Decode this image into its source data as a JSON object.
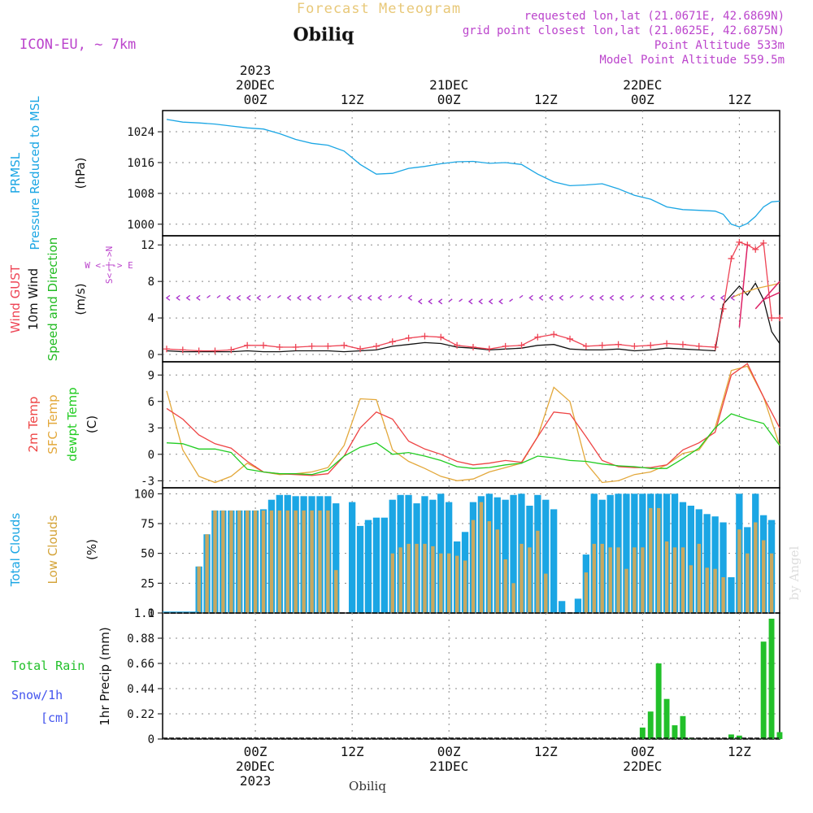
{
  "header": {
    "title": "Forecast Meteogram",
    "station": "Obiliq",
    "model": "ICON-EU, ~ 7km",
    "requested": "requested lon,lat (21.0671E, 42.6869N)",
    "gridpoint": "grid point closest lon,lat (21.0625E, 42.6875N)",
    "altitude": "Point Altitude 533m",
    "model_altitude": "Model Point Altitude 559.5m",
    "footer_station": "Obiliq",
    "watermark": "by Angel"
  },
  "colors": {
    "pressure": "#1ba6e4",
    "gust": "#ee4455",
    "wind": "#111111",
    "dir_green": "#22bb22",
    "compass": "#bb44cc",
    "t2m": "#ee4444",
    "sfc": "#e3a83b",
    "dewpt": "#22cc22",
    "total_clouds": "#1ba6e4",
    "low_clouds": "#c8a860",
    "rain": "#22c02a",
    "snow": "#4455ee"
  },
  "time_axis": {
    "top_ticks": [
      "00Z",
      "12Z",
      "00Z",
      "12Z",
      "00Z",
      "12Z"
    ],
    "top_dates": [
      "20DEC",
      "21DEC",
      "22DEC"
    ],
    "year": "2023",
    "bottom_ticks": [
      "00Z",
      "12Z",
      "00Z",
      "12Z",
      "00Z",
      "12Z"
    ],
    "bottom_dates": [
      "20DEC",
      "21DEC",
      "22DEC"
    ],
    "tick_hours": [
      0,
      12,
      24,
      36,
      48,
      60
    ],
    "date_hours": [
      0,
      24,
      48
    ],
    "range_hours": [
      -11.5,
      65
    ]
  },
  "labels": {
    "pressure_abbr": "PRMSL",
    "pressure_name": "Pressure Reduced to MSL",
    "pressure_unit": "(hPa)",
    "gust": "Wind GUST",
    "wind": "10m Wind",
    "wind_dir": "Speed and Direction",
    "wind_unit": "(m/s)",
    "compass_w": "W <-|-> E",
    "compass_n": "S<-|->N",
    "t2m": "2m Temp",
    "sfc": "SFC Temp",
    "dewpt": "dewpt Temp",
    "temp_unit": "(C)",
    "total_clouds": "Total Clouds",
    "low_clouds": "Low Clouds",
    "cloud_unit": "(%)",
    "total_rain": "Total  Rain",
    "snow": "Snow/1h",
    "snow_unit": "[cm]",
    "precip": "1hr Precip (mm)"
  },
  "chart_data": [
    {
      "type": "line",
      "title": "PRMSL Pressure Reduced to MSL",
      "ylabel": "hPa",
      "ylim": [
        997,
        1029.5
      ],
      "yticks": [
        1000,
        1008,
        1016,
        1024
      ],
      "series": [
        {
          "name": "PRMSL",
          "x": [
            -11,
            -9,
            -7,
            -5,
            -3,
            -1,
            1,
            3,
            5,
            7,
            9,
            11,
            13,
            15,
            17,
            19,
            21,
            23,
            25,
            27,
            29,
            31,
            33,
            35,
            37,
            39,
            41,
            43,
            45,
            47,
            49,
            51,
            53,
            55,
            57,
            58,
            59,
            60,
            61,
            62,
            63,
            64,
            65
          ],
          "values": [
            1027.2,
            1026.5,
            1026.3,
            1026.0,
            1025.5,
            1025.0,
            1024.7,
            1023.5,
            1022.0,
            1021.0,
            1020.5,
            1019.0,
            1015.5,
            1013.0,
            1013.2,
            1014.5,
            1015.0,
            1015.7,
            1016.2,
            1016.3,
            1015.8,
            1016.0,
            1015.5,
            1013.0,
            1011.0,
            1010.0,
            1010.2,
            1010.5,
            1009.2,
            1007.5,
            1006.5,
            1004.5,
            1003.8,
            1003.6,
            1003.4,
            1002.6,
            1000.0,
            999.3,
            1000.2,
            1002.0,
            1004.5,
            1005.8,
            1006.0
          ]
        }
      ]
    },
    {
      "type": "line",
      "title": "Wind GUST / 10m Wind Speed and Direction",
      "ylabel": "m/s",
      "ylim": [
        -0.8,
        13
      ],
      "yticks": [
        0,
        4,
        8,
        12
      ],
      "series": [
        {
          "name": "Wind GUST",
          "x": [
            -11,
            -9,
            -7,
            -5,
            -3,
            -1,
            1,
            3,
            5,
            7,
            9,
            11,
            13,
            15,
            17,
            19,
            21,
            23,
            25,
            27,
            29,
            31,
            33,
            35,
            37,
            39,
            41,
            43,
            45,
            47,
            49,
            51,
            53,
            55,
            57,
            58,
            59,
            60,
            61,
            62,
            63,
            64,
            65
          ],
          "values": [
            0.6,
            0.5,
            0.4,
            0.4,
            0.5,
            1.0,
            1.0,
            0.8,
            0.8,
            0.9,
            0.9,
            1.0,
            0.6,
            0.9,
            1.4,
            1.8,
            2.0,
            1.9,
            1.0,
            0.8,
            0.6,
            0.9,
            1.0,
            1.9,
            2.2,
            1.7,
            0.9,
            1.0,
            1.1,
            0.9,
            1.0,
            1.2,
            1.1,
            0.9,
            0.8,
            5.0,
            10.5,
            12.3,
            12.0,
            11.5,
            12.2,
            4.0,
            4.0
          ]
        },
        {
          "name": "10m Wind",
          "x": [
            -11,
            -9,
            -7,
            -5,
            -3,
            -1,
            1,
            3,
            5,
            7,
            9,
            11,
            13,
            15,
            17,
            19,
            21,
            23,
            25,
            27,
            29,
            31,
            33,
            35,
            37,
            39,
            41,
            43,
            45,
            47,
            49,
            51,
            53,
            55,
            57,
            58,
            59,
            60,
            61,
            62,
            63,
            64,
            65
          ],
          "values": [
            0.4,
            0.3,
            0.3,
            0.3,
            0.3,
            0.4,
            0.3,
            0.3,
            0.4,
            0.4,
            0.4,
            0.3,
            0.4,
            0.5,
            0.9,
            1.1,
            1.3,
            1.2,
            0.8,
            0.7,
            0.5,
            0.6,
            0.7,
            1.0,
            1.1,
            0.6,
            0.5,
            0.5,
            0.6,
            0.4,
            0.5,
            0.7,
            0.6,
            0.5,
            0.4,
            5.5,
            6.5,
            7.5,
            6.5,
            7.8,
            6.0,
            2.5,
            1.2
          ]
        },
        {
          "name": "Speed and Direction",
          "x": [
            59,
            60,
            61,
            62,
            63,
            64,
            65
          ],
          "values": [
            6.2,
            6.6,
            6.9,
            7.2,
            7.4,
            7.6,
            7.8
          ]
        }
      ],
      "direction_arrows": "sampled every hour, purple barbs along ~6 m/s"
    },
    {
      "type": "line",
      "title": "2m Temp / SFC Temp / dewpt Temp",
      "ylabel": "C",
      "ylim": [
        -3.8,
        10.5
      ],
      "yticks": [
        -3,
        0,
        3,
        6,
        9
      ],
      "series": [
        {
          "name": "2m Temp",
          "x": [
            -11,
            -9,
            -7,
            -5,
            -3,
            -1,
            1,
            3,
            5,
            7,
            9,
            11,
            13,
            15,
            17,
            19,
            21,
            23,
            25,
            27,
            29,
            31,
            33,
            35,
            37,
            39,
            41,
            43,
            45,
            47,
            49,
            51,
            53,
            55,
            57,
            59,
            61,
            63,
            65
          ],
          "values": [
            5.2,
            4.0,
            2.2,
            1.2,
            0.7,
            -0.8,
            -2.0,
            -2.2,
            -2.3,
            -2.4,
            -2.2,
            -0.2,
            3.0,
            4.8,
            4.0,
            1.5,
            0.6,
            0.0,
            -0.8,
            -1.2,
            -1.0,
            -0.7,
            -0.9,
            2.0,
            4.8,
            4.6,
            2.0,
            -0.7,
            -1.4,
            -1.5,
            -1.5,
            -1.2,
            0.5,
            1.3,
            2.5,
            9.0,
            10.3,
            6.5,
            3.0
          ]
        },
        {
          "name": "SFC Temp",
          "x": [
            -11,
            -9,
            -7,
            -5,
            -3,
            -1,
            1,
            3,
            5,
            7,
            9,
            11,
            13,
            15,
            17,
            19,
            21,
            23,
            25,
            27,
            29,
            31,
            33,
            35,
            37,
            39,
            41,
            43,
            45,
            47,
            49,
            51,
            53,
            55,
            57,
            59,
            61,
            63,
            65
          ],
          "values": [
            7.2,
            0.5,
            -2.5,
            -3.2,
            -2.5,
            -1.0,
            -2.0,
            -2.3,
            -2.2,
            -2.0,
            -1.5,
            1.0,
            6.3,
            6.2,
            0.5,
            -0.8,
            -1.6,
            -2.5,
            -3.0,
            -2.8,
            -2.0,
            -1.5,
            -1.0,
            2.0,
            7.6,
            6.0,
            -1.0,
            -3.2,
            -3.0,
            -2.3,
            -2.0,
            -1.2,
            0.1,
            0.5,
            3.0,
            9.5,
            10.0,
            6.5,
            1.0
          ]
        },
        {
          "name": "dewpt Temp",
          "x": [
            -11,
            -9,
            -7,
            -5,
            -3,
            -1,
            1,
            3,
            5,
            7,
            9,
            11,
            13,
            15,
            17,
            19,
            21,
            23,
            25,
            27,
            29,
            31,
            33,
            35,
            37,
            39,
            41,
            43,
            45,
            47,
            49,
            51,
            53,
            55,
            57,
            59,
            61,
            63,
            65
          ],
          "values": [
            1.3,
            1.2,
            0.6,
            0.6,
            0.2,
            -1.7,
            -2.0,
            -2.2,
            -2.2,
            -2.3,
            -1.8,
            -0.2,
            0.8,
            1.3,
            0.0,
            0.2,
            -0.2,
            -0.7,
            -1.4,
            -1.6,
            -1.5,
            -1.2,
            -1.0,
            -0.2,
            -0.4,
            -0.7,
            -0.8,
            -1.1,
            -1.3,
            -1.4,
            -1.6,
            -1.6,
            -0.5,
            0.7,
            3.0,
            4.6,
            4.0,
            3.5,
            1.0
          ]
        }
      ]
    },
    {
      "type": "bar",
      "title": "Total Clouds / Low Clouds",
      "ylabel": "%",
      "ylim": [
        0,
        105
      ],
      "yticks": [
        0,
        25,
        50,
        75,
        100
      ],
      "x_start": -7,
      "x_step": 1,
      "series": [
        {
          "name": "Total Clouds",
          "values": [
            39,
            66,
            86,
            86,
            86,
            86,
            86,
            86,
            87,
            95,
            99,
            99,
            98,
            98,
            98,
            98,
            98,
            92,
            0,
            93,
            73,
            78,
            80,
            80,
            95,
            99,
            99,
            92,
            98,
            95,
            100,
            93,
            60,
            68,
            93,
            98,
            100,
            97,
            95,
            99,
            100,
            90,
            99,
            95,
            87,
            10,
            0,
            12,
            49,
            100,
            95,
            99,
            100,
            100,
            100,
            100,
            100,
            100,
            100,
            100,
            93,
            90,
            87,
            83,
            81,
            76,
            30,
            100,
            72,
            100,
            82,
            78
          ]
        },
        {
          "name": "Low Clouds",
          "values": [
            39,
            66,
            86,
            86,
            86,
            86,
            86,
            86,
            86,
            86,
            86,
            86,
            86,
            86,
            86,
            86,
            86,
            36,
            0,
            0,
            0,
            0,
            0,
            0,
            50,
            55,
            58,
            58,
            58,
            56,
            50,
            50,
            48,
            44,
            78,
            93,
            77,
            70,
            45,
            25,
            58,
            55,
            69,
            33,
            0,
            0,
            0,
            0,
            34,
            58,
            58,
            55,
            55,
            37,
            55,
            55,
            88,
            88,
            60,
            55,
            55,
            40,
            58,
            38,
            37,
            30,
            0,
            70,
            50,
            76,
            61,
            50
          ]
        }
      ]
    },
    {
      "type": "bar",
      "title": "1hr Precip (mm)",
      "ylabel": "mm",
      "ylim": [
        0,
        1.1
      ],
      "yticks": [
        0,
        0.22,
        0.44,
        0.66,
        0.88,
        1.1
      ],
      "ytick_labels": [
        "0",
        "0.22",
        "0.44",
        "0.66",
        "0.88",
        "1.1"
      ],
      "series": [
        {
          "name": "Total Rain",
          "x": [
            48,
            49,
            50,
            51,
            52,
            53,
            54,
            59,
            60,
            63,
            64,
            65
          ],
          "values": [
            0.1,
            0.24,
            0.66,
            0.35,
            0.12,
            0.2,
            0.01,
            0.04,
            0.03,
            0.85,
            1.05,
            0.06
          ]
        },
        {
          "name": "Snow/1h",
          "x": [],
          "values": []
        }
      ]
    }
  ]
}
